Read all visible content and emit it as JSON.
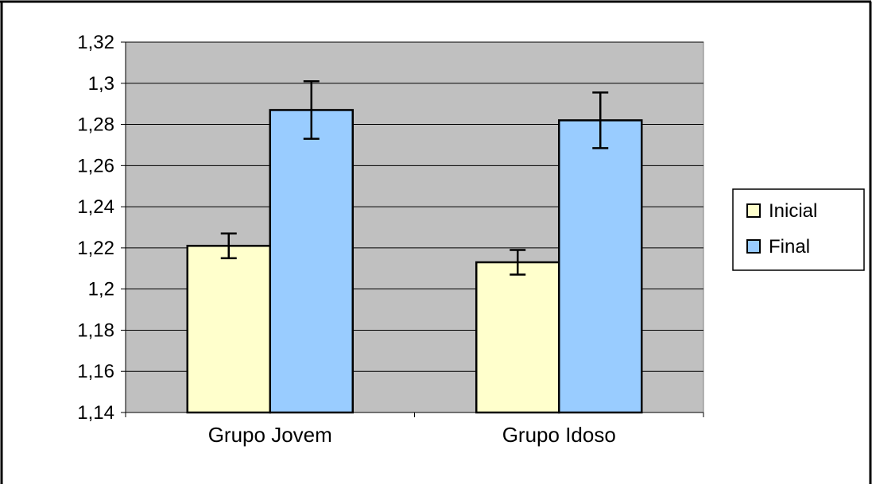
{
  "chart_data": {
    "type": "bar",
    "title": "",
    "xlabel": "",
    "ylabel": "",
    "categories": [
      "Grupo Jovem",
      "Grupo Idoso"
    ],
    "series": [
      {
        "name": "Inicial",
        "color": "#ffffcc",
        "values": [
          1.221,
          1.213
        ],
        "error": [
          0.006,
          0.006
        ]
      },
      {
        "name": "Final",
        "color": "#99ccff",
        "values": [
          1.287,
          1.282
        ],
        "error": [
          0.014,
          0.0135
        ]
      }
    ],
    "ylim": [
      1.14,
      1.32
    ],
    "yticks": [
      "1,14",
      "1,16",
      "1,18",
      "1,2",
      "1,22",
      "1,24",
      "1,26",
      "1,28",
      "1,3",
      "1,32"
    ],
    "grid": true,
    "plot_background": "#c0c0c0",
    "legend_position": "right"
  }
}
